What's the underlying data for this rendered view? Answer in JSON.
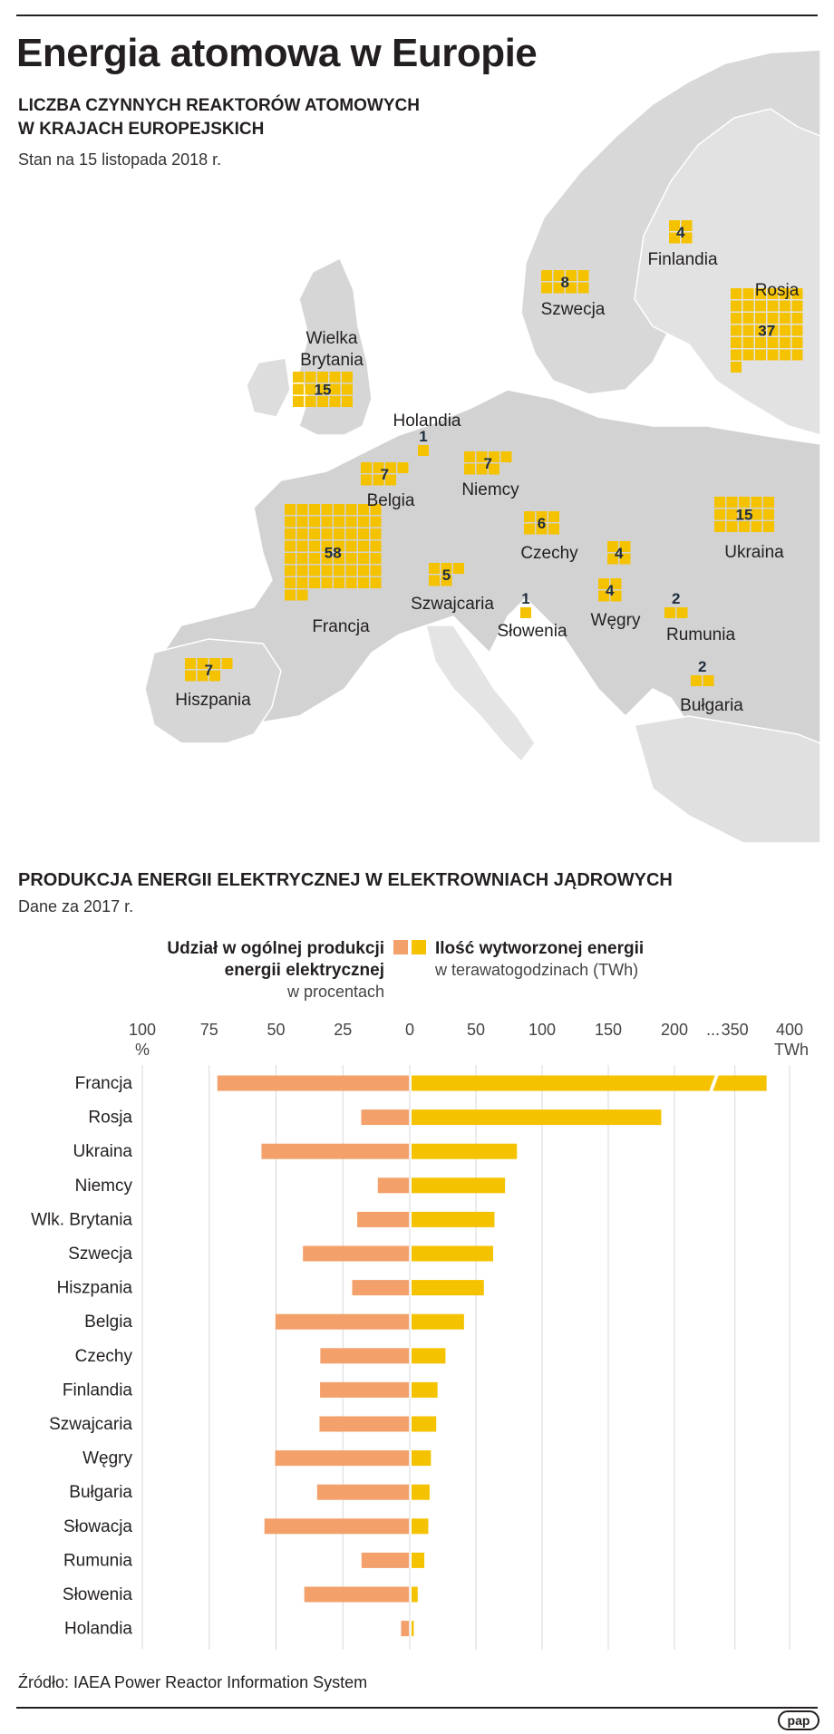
{
  "header": {
    "title": "Energia atomowa w Europie",
    "subtitle_line1": "LICZBA CZYNNYCH REAKTORÓW ATOMOWYCH",
    "subtitle_line2": "W KRAJACH EUROPEJSKICH",
    "as_of": "Stan na 15 listopada 2018 r."
  },
  "colors": {
    "reactor": "#f5c200",
    "share_bar": "#f3a06b",
    "energy_bar": "#f5c200",
    "land": "#dcdcdc",
    "land_dark": "#cfcfcf",
    "text_dark": "#231f20",
    "reactor_label": "#1f2d3d"
  },
  "map": {
    "reactors": [
      {
        "country": "Rosja",
        "count": 37
      },
      {
        "country": "Finlandia",
        "count": 4
      },
      {
        "country": "Szwecja",
        "count": 8
      },
      {
        "country": "Wielka Brytania",
        "count": 15
      },
      {
        "country": "Holandia",
        "count": 1
      },
      {
        "country": "Belgia",
        "count": 7
      },
      {
        "country": "Niemcy",
        "count": 7
      },
      {
        "country": "Francja",
        "count": 58
      },
      {
        "country": "Czechy",
        "count": 6
      },
      {
        "country": "Szwajcaria",
        "count": 5
      },
      {
        "country": "Słowacja",
        "count": 4
      },
      {
        "country": "Węgry",
        "count": 4
      },
      {
        "country": "Słowenia",
        "count": 1
      },
      {
        "country": "Ukraina",
        "count": 15
      },
      {
        "country": "Rumunia",
        "count": 2
      },
      {
        "country": "Bułgaria",
        "count": 2
      },
      {
        "country": "Hiszpania",
        "count": 7
      }
    ],
    "labels": {
      "rosja": "Rosja",
      "finlandia": "Finlandia",
      "szwecja": "Szwecja",
      "wielka1": "Wielka",
      "wielka2": "Brytania",
      "holandia": "Holandia",
      "belgia": "Belgia",
      "niemcy": "Niemcy",
      "francja": "Francja",
      "czechy": "Czechy",
      "szwajcaria": "Szwajcaria",
      "wegry": "Węgry",
      "slowenia": "Słowenia",
      "ukraina": "Ukraina",
      "rumunia": "Rumunia",
      "bulgaria": "Bułgaria",
      "hiszpania": "Hiszpania"
    }
  },
  "section2": {
    "title": "PRODUKCJA ENERGII ELEKTRYCZNEJ W ELEKTROWNIACH JĄDROWYCH",
    "subtitle": "Dane za 2017 r."
  },
  "chart_data": {
    "type": "bar",
    "orientation": "horizontal-diverging",
    "legend_left_line1": "Udział w ogólnej produkcji",
    "legend_left_line2": "energii elektrycznej",
    "legend_left_unit": "w procentach",
    "legend_right_line1": "Ilość wytworzonej energii",
    "legend_right_unit": "w terawatogodzinach (TWh)",
    "left_ticks": [
      "100",
      "75",
      "50",
      "25",
      "0"
    ],
    "left_unit_label": "%",
    "right_ticks": [
      "50",
      "100",
      "150",
      "200",
      "...",
      "350",
      "400"
    ],
    "right_unit_label": "TWh",
    "left_xlim": [
      0,
      100
    ],
    "right_xlim": [
      0,
      400
    ],
    "right_axis_break": [
      225,
      325
    ],
    "grid": true,
    "categories": [
      "Francja",
      "Rosja",
      "Ukraina",
      "Niemcy",
      "Wlk. Brytania",
      "Szwecja",
      "Hiszpania",
      "Belgia",
      "Czechy",
      "Finlandia",
      "Szwajcaria",
      "Węgry",
      "Bułgaria",
      "Słowacja",
      "Rumunia",
      "Słowenia",
      "Holandia"
    ],
    "series": [
      {
        "name": "Udział w ogólnej produkcji energii elektrycznej",
        "unit": "%",
        "values": [
          71.6,
          17.8,
          55.1,
          11.6,
          19.3,
          39.6,
          21.2,
          49.9,
          33.1,
          33.2,
          33.4,
          50.0,
          34.3,
          54.0,
          17.7,
          39.1,
          2.9
        ]
      },
      {
        "name": "Ilość wytworzonej energii",
        "unit": "TWh",
        "values": [
          379,
          190,
          81,
          72,
          64,
          63,
          56,
          41,
          27,
          21,
          20,
          16,
          15,
          14,
          11,
          6,
          3
        ]
      }
    ]
  },
  "footer": {
    "source": "Źródło: IAEA Power Reactor Information System",
    "logo": "pap"
  }
}
